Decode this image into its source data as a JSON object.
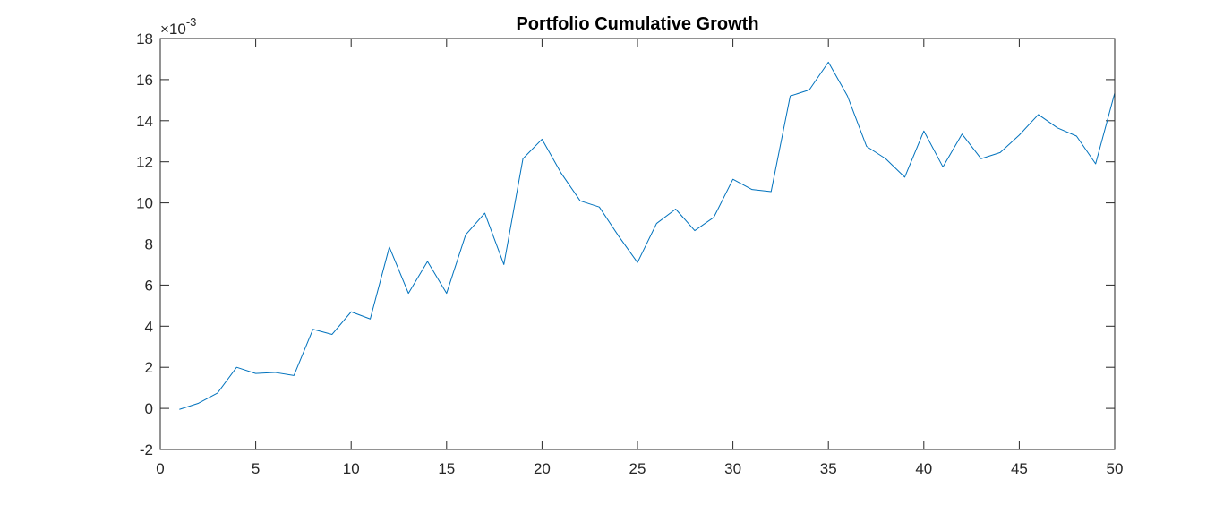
{
  "chart_data": {
    "type": "line",
    "title": "Portfolio Cumulative Growth",
    "xlabel": "",
    "ylabel": "",
    "xlim": [
      0,
      50
    ],
    "ylim": [
      -2,
      18
    ],
    "y_exponent_label": "×10",
    "y_exponent_power": "-3",
    "x_ticks": [
      0,
      5,
      10,
      15,
      20,
      25,
      30,
      35,
      40,
      45,
      50
    ],
    "x_tick_labels": [
      "0",
      "5",
      "10",
      "15",
      "20",
      "25",
      "30",
      "35",
      "40",
      "45",
      "50"
    ],
    "y_ticks": [
      -2,
      0,
      2,
      4,
      6,
      8,
      10,
      12,
      14,
      16,
      18
    ],
    "y_tick_labels": [
      "-2",
      "0",
      "2",
      "4",
      "6",
      "8",
      "10",
      "12",
      "14",
      "16",
      "18"
    ],
    "grid": false,
    "line_color": "#0072BD",
    "series": [
      {
        "x": [
          1,
          2,
          3,
          4,
          5,
          6,
          7,
          8,
          9,
          10,
          11,
          12,
          13,
          14,
          15,
          16,
          17,
          18,
          19,
          20,
          21,
          22,
          23,
          24,
          25,
          26,
          27,
          28,
          29,
          30,
          31,
          32,
          33,
          34,
          35,
          36,
          37,
          38,
          39,
          40,
          41,
          42,
          43,
          44,
          45,
          46,
          47,
          48,
          49,
          50
        ],
        "values": [
          -0.05,
          0.25,
          0.75,
          2.0,
          1.7,
          1.75,
          1.6,
          3.85,
          3.6,
          4.7,
          4.35,
          7.85,
          5.6,
          7.15,
          5.6,
          8.45,
          9.5,
          7.0,
          12.15,
          13.1,
          11.45,
          10.1,
          9.8,
          8.4,
          7.1,
          9.0,
          9.7,
          8.65,
          9.3,
          11.15,
          10.65,
          10.55,
          15.2,
          15.5,
          16.85,
          15.2,
          12.75,
          12.15,
          11.25,
          13.5,
          11.75,
          13.35,
          12.15,
          12.45,
          13.3,
          14.3,
          13.65,
          13.25,
          11.9,
          15.35
        ]
      }
    ]
  }
}
